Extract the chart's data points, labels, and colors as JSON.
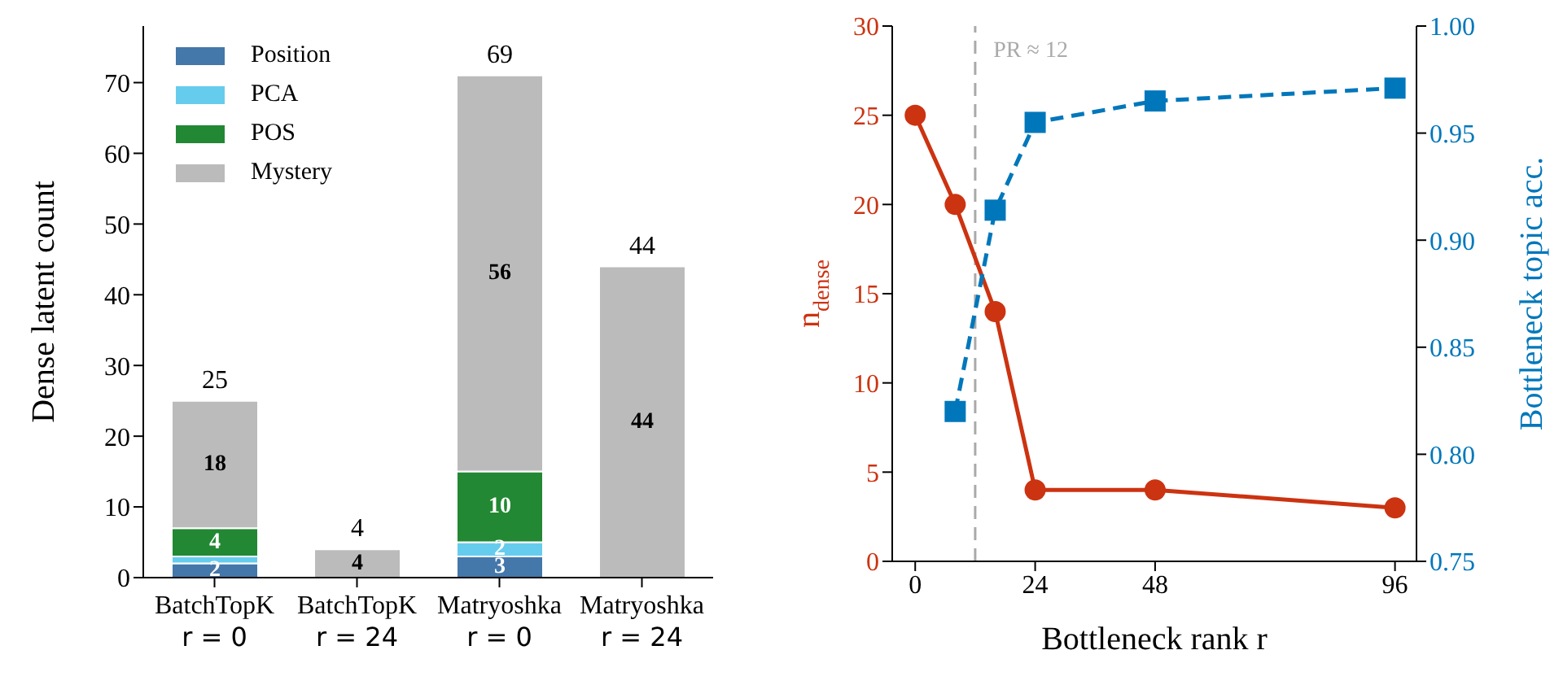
{
  "chart_data": [
    {
      "type": "bar",
      "stacked": true,
      "ylabel": "Dense latent count",
      "categories": [
        "BatchTopK\nr = 0",
        "BatchTopK\nr = 24",
        "Matryoshka\nr = 0",
        "Matryoshka\nr = 24"
      ],
      "ylim": [
        0,
        78
      ],
      "yticks": [
        0,
        10,
        20,
        30,
        40,
        50,
        60,
        70
      ],
      "legend": "top left",
      "series": [
        {
          "name": "Position",
          "color": "#4477aa",
          "values": [
            2,
            0,
            3,
            0
          ],
          "value_labels": [
            "2",
            null,
            "3",
            null
          ]
        },
        {
          "name": "PCA",
          "color": "#66ccee",
          "values": [
            1,
            0,
            2,
            0
          ],
          "value_labels": [
            null,
            null,
            "2",
            null
          ]
        },
        {
          "name": "POS",
          "color": "#228833",
          "values": [
            4,
            0,
            10,
            0
          ],
          "value_labels": [
            "4",
            null,
            "10",
            null
          ]
        },
        {
          "name": "Mystery",
          "color": "#bbbbbb",
          "values": [
            18,
            4,
            56,
            44
          ],
          "value_labels": [
            "18",
            "4",
            "56",
            "44"
          ]
        }
      ],
      "totals": [
        "25",
        "4",
        "69",
        "44"
      ]
    },
    {
      "type": "line",
      "xlabel": "Bottleneck rank r",
      "ylabel": "n$_{dense}$",
      "y2label": "Bottleneck topic acc.",
      "xlim": [
        -4.6,
        100.3
      ],
      "xticks": [
        0,
        24,
        48,
        96
      ],
      "ylim": [
        0,
        30
      ],
      "yticks": [
        0,
        5,
        10,
        15,
        20,
        25,
        30
      ],
      "y2lim": [
        0.75,
        1.0
      ],
      "y2ticks": [
        {
          "value": 0.75,
          "label": "0.75"
        },
        {
          "value": 0.8,
          "label": "0.80"
        },
        {
          "value": 0.85,
          "label": "0.85"
        },
        {
          "value": 0.9,
          "label": "0.90"
        },
        {
          "value": 0.95,
          "label": "0.95"
        },
        {
          "value": 1.0,
          "label": "1.00"
        }
      ],
      "series": [
        {
          "color": "#cc3311",
          "x": [
            0,
            8,
            16,
            24,
            48,
            96
          ],
          "values": [
            25,
            20,
            14,
            4,
            4,
            3
          ],
          "marker": "circle",
          "line_style": "solid"
        },
        {
          "color": "#0077bb",
          "axis": "y2",
          "x": [
            8,
            16,
            24,
            48,
            96
          ],
          "values": [
            0.82,
            0.914,
            0.955,
            0.965,
            0.971
          ],
          "marker": "square",
          "line_style": "dashed"
        }
      ],
      "ref_lines": [
        {
          "axis": "x",
          "value": 12,
          "label": "PR ≈ 12",
          "color": "#aaaaaa",
          "line_style": "dashed"
        }
      ]
    }
  ]
}
